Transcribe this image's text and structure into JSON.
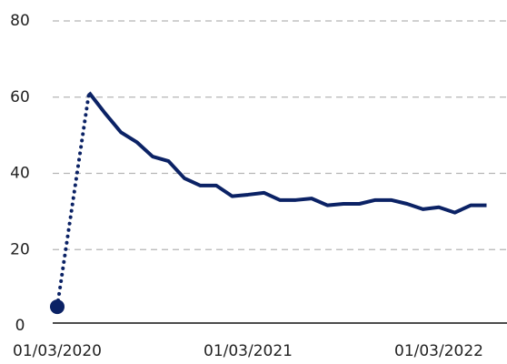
{
  "chart_data": {
    "type": "line",
    "x": [
      "01/03/2020",
      "01/05/2020",
      "01/06/2020",
      "01/07/2020",
      "01/08/2020",
      "01/09/2020",
      "01/10/2020",
      "01/11/2020",
      "01/12/2020",
      "01/01/2021",
      "01/02/2021",
      "01/03/2021",
      "01/04/2021",
      "01/05/2021",
      "01/06/2021",
      "01/07/2021",
      "01/08/2021",
      "01/09/2021",
      "01/10/2021",
      "01/11/2021",
      "01/12/2021",
      "01/01/2022",
      "01/02/2022",
      "01/03/2022",
      "01/04/2022",
      "01/05/2022",
      "01/06/2022"
    ],
    "series": [
      {
        "color": "#0b2265",
        "values": [
          5,
          61.2,
          55.8,
          50.8,
          48.2,
          44.4,
          43.2,
          38.7,
          36.8,
          36.8,
          34,
          34.4,
          34.9,
          33,
          33,
          33.4,
          31.6,
          32,
          32,
          33,
          33,
          32,
          30.6,
          31.1,
          29.7,
          31.6,
          31.6
        ]
      }
    ],
    "first_segment_style": "dotted",
    "first_point_marker": true,
    "xlim": [
      "01/03/2020",
      "01/07/2022"
    ],
    "xticks": [
      "01/03/2020",
      "01/03/2021",
      "01/03/2022"
    ],
    "ylim": [
      0,
      80
    ],
    "yticks": [
      0,
      20,
      40,
      60,
      80
    ],
    "grid": true
  }
}
